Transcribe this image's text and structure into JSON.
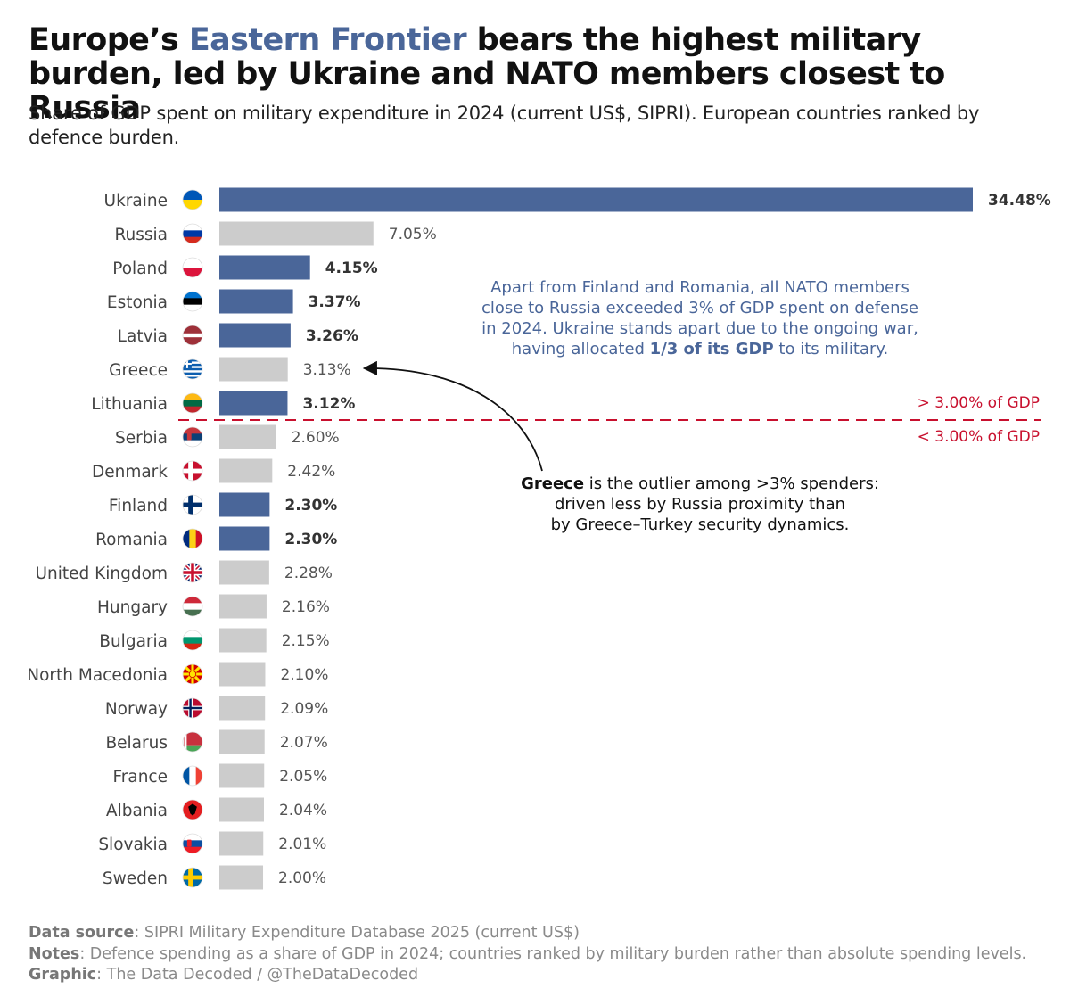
{
  "header": {
    "title_pre": "Europe’s ",
    "title_highlight": "Eastern Frontier",
    "title_post": " bears the highest military burden, led by Ukraine and NATO members closest to Russia",
    "subtitle": "Share of GDP spent on military expenditure in 2024 (current US$, SIPRI). European countries ranked by defence burden."
  },
  "colors": {
    "highlight_bar": "#4a6699",
    "other_bar": "#cccccc",
    "threshold_line": "#c8102e",
    "annotation_text": "#4a6699"
  },
  "chart_data": {
    "type": "bar",
    "orientation": "horizontal",
    "value_suffix": "%",
    "categories": [
      "Ukraine",
      "Russia",
      "Poland",
      "Estonia",
      "Latvia",
      "Greece",
      "Lithuania",
      "Serbia",
      "Denmark",
      "Finland",
      "Romania",
      "United Kingdom",
      "Hungary",
      "Bulgaria",
      "North Macedonia",
      "Norway",
      "Belarus",
      "France",
      "Albania",
      "Slovakia",
      "Sweden"
    ],
    "values": [
      34.48,
      7.05,
      4.15,
      3.37,
      3.26,
      3.13,
      3.12,
      2.6,
      2.42,
      2.3,
      2.3,
      2.28,
      2.16,
      2.15,
      2.1,
      2.09,
      2.07,
      2.05,
      2.04,
      2.01,
      2.0
    ],
    "value_labels": [
      "34.48%",
      "7.05%",
      "4.15%",
      "3.37%",
      "3.26%",
      "3.13%",
      "3.12%",
      "2.60%",
      "2.42%",
      "2.30%",
      "2.30%",
      "2.28%",
      "2.16%",
      "2.15%",
      "2.10%",
      "2.09%",
      "2.07%",
      "2.05%",
      "2.04%",
      "2.01%",
      "2.00%"
    ],
    "highlighted": [
      true,
      false,
      true,
      true,
      true,
      false,
      true,
      false,
      false,
      true,
      true,
      false,
      false,
      false,
      false,
      false,
      false,
      false,
      false,
      false,
      false
    ],
    "flags": [
      "ukraine-flag-icon",
      "russia-flag-icon",
      "poland-flag-icon",
      "estonia-flag-icon",
      "latvia-flag-icon",
      "greece-flag-icon",
      "lithuania-flag-icon",
      "serbia-flag-icon",
      "denmark-flag-icon",
      "finland-flag-icon",
      "romania-flag-icon",
      "united-kingdom-flag-icon",
      "hungary-flag-icon",
      "bulgaria-flag-icon",
      "north-macedonia-flag-icon",
      "norway-flag-icon",
      "belarus-flag-icon",
      "france-flag-icon",
      "albania-flag-icon",
      "slovakia-flag-icon",
      "sweden-flag-icon"
    ],
    "xlim": [
      0,
      34.48
    ],
    "grid": false,
    "threshold": {
      "value": 3.0,
      "label_above": "> 3.00% of GDP",
      "label_below": "< 3.00% of GDP"
    },
    "annotations": {
      "nato_note": {
        "line1": "Apart from Finland and Romania, all NATO members",
        "line2": "close to Russia exceeded 3% of GDP spent on defense",
        "line3": "in 2024. Ukraine stands apart due to the ongoing war,",
        "line4_pre": "having allocated ",
        "line4_bold": "1/3 of its GDP",
        "line4_post": " to its military."
      },
      "greece_note": {
        "line1_bold": "Greece",
        "line1_rest": " is the outlier among >3% spenders:",
        "line2": "driven less by Russia proximity than",
        "line3": "by Greece–Turkey security dynamics."
      }
    }
  },
  "footer": {
    "source_label": "Data source",
    "source_text": ": SIPRI Military Expenditure Database 2025 (current US$)",
    "notes_label": "Notes",
    "notes_text": ": Defence spending as a share of GDP in 2024; countries ranked by military burden rather than absolute spending levels.",
    "graphic_label": "Graphic",
    "graphic_text": ": The Data Decoded / @TheDataDecoded"
  }
}
